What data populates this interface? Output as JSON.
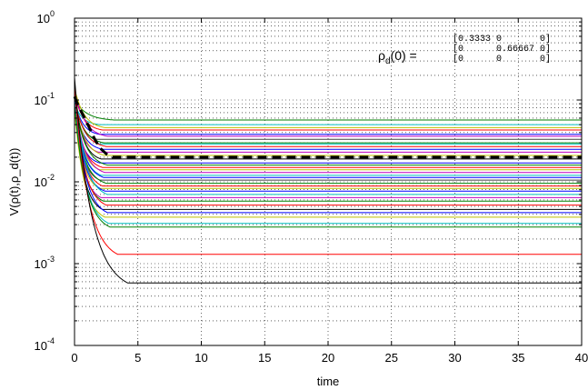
{
  "chart_data": {
    "type": "line",
    "title": "",
    "xlabel": "time",
    "ylabel": "V(ρ(t),ρ_d(t))",
    "xlim": [
      0,
      40
    ],
    "ylim": [
      0.0001,
      1
    ],
    "yscale": "log",
    "grid": true,
    "x_ticks": [
      "0",
      "5",
      "10",
      "15",
      "20",
      "25",
      "30",
      "35",
      "40"
    ],
    "y_ticks": [
      {
        "base": "10",
        "exp": "0"
      },
      {
        "base": "10",
        "exp": "-1"
      },
      {
        "base": "10",
        "exp": "-2"
      },
      {
        "base": "10",
        "exp": "-3"
      },
      {
        "base": "10",
        "exp": "-4"
      }
    ],
    "annotation": {
      "lhs_base": "ρ",
      "lhs_sub": "d",
      "lhs_rest": "(0) =",
      "matrix_rows": [
        "[0.3333 0       0]",
        "[0      0.66667 0]",
        "[0      0       0]"
      ]
    },
    "highlight_series": {
      "style": "dashed-black",
      "x": [
        0,
        0.3,
        0.8,
        1.2,
        1.6,
        2.0,
        2.5,
        3.0,
        40
      ],
      "y": [
        0.11,
        0.085,
        0.06,
        0.045,
        0.033,
        0.026,
        0.022,
        0.02,
        0.02
      ]
    },
    "series": [
      {
        "color": "#008000",
        "y_start": 0.1,
        "y_end": 0.057,
        "t_settle": 3.1
      },
      {
        "color": "#00bfbf",
        "y_start": 0.09,
        "y_end": 0.05,
        "t_settle": 2.0
      },
      {
        "color": "#bfbf00",
        "y_start": 0.14,
        "y_end": 0.046,
        "t_settle": 2.4
      },
      {
        "color": "#ff0000",
        "y_start": 0.12,
        "y_end": 0.043,
        "t_settle": 2.2
      },
      {
        "color": "#0000ff",
        "y_start": 0.1,
        "y_end": 0.038,
        "t_settle": 2.0
      },
      {
        "color": "#bf00bf",
        "y_start": 0.13,
        "y_end": 0.036,
        "t_settle": 2.6
      },
      {
        "color": "#404040",
        "y_start": 0.11,
        "y_end": 0.033,
        "t_settle": 1.8
      },
      {
        "color": "#008000",
        "y_start": 0.1,
        "y_end": 0.03,
        "t_settle": 2.3
      },
      {
        "color": "#00bfbf",
        "y_start": 0.12,
        "y_end": 0.029,
        "t_settle": 2.0
      },
      {
        "color": "#ff0000",
        "y_start": 0.1,
        "y_end": 0.027,
        "t_settle": 2.5
      },
      {
        "color": "#0000ff",
        "y_start": 0.09,
        "y_end": 0.025,
        "t_settle": 2.2
      },
      {
        "color": "#bf00bf",
        "y_start": 0.11,
        "y_end": 0.023,
        "t_settle": 1.9
      },
      {
        "color": "#bfbf00",
        "y_start": 0.1,
        "y_end": 0.021,
        "t_settle": 2.4
      },
      {
        "color": "#000000",
        "y_start": 0.12,
        "y_end": 0.019,
        "t_settle": 2.1
      },
      {
        "color": "#0000ff",
        "y_start": 0.08,
        "y_end": 0.017,
        "t_settle": 2.0
      },
      {
        "color": "#008000",
        "y_start": 0.1,
        "y_end": 0.016,
        "t_settle": 2.6
      },
      {
        "color": "#ff0000",
        "y_start": 0.09,
        "y_end": 0.015,
        "t_settle": 2.2
      },
      {
        "color": "#bfbf00",
        "y_start": 0.11,
        "y_end": 0.014,
        "t_settle": 2.0
      },
      {
        "color": "#bf00bf",
        "y_start": 0.1,
        "y_end": 0.013,
        "t_settle": 2.4
      },
      {
        "color": "#00bfbf",
        "y_start": 0.12,
        "y_end": 0.012,
        "t_settle": 2.1
      },
      {
        "color": "#0000ff",
        "y_start": 0.09,
        "y_end": 0.0113,
        "t_settle": 2.3
      },
      {
        "color": "#404040",
        "y_start": 0.1,
        "y_end": 0.0105,
        "t_settle": 2.0
      },
      {
        "color": "#008000",
        "y_start": 0.08,
        "y_end": 0.0096,
        "t_settle": 2.5
      },
      {
        "color": "#ff0000",
        "y_start": 0.11,
        "y_end": 0.0089,
        "t_settle": 2.2
      },
      {
        "color": "#bfbf00",
        "y_start": 0.1,
        "y_end": 0.0083,
        "t_settle": 2.0
      },
      {
        "color": "#0000ff",
        "y_start": 0.09,
        "y_end": 0.0077,
        "t_settle": 2.4
      },
      {
        "color": "#00bfbf",
        "y_start": 0.12,
        "y_end": 0.007,
        "t_settle": 2.6
      },
      {
        "color": "#bf00bf",
        "y_start": 0.1,
        "y_end": 0.0064,
        "t_settle": 2.1
      },
      {
        "color": "#008000",
        "y_start": 0.09,
        "y_end": 0.0058,
        "t_settle": 2.3
      },
      {
        "color": "#ff0000",
        "y_start": 0.11,
        "y_end": 0.0052,
        "t_settle": 2.5
      },
      {
        "color": "#000000",
        "y_start": 0.1,
        "y_end": 0.0046,
        "t_settle": 2.2
      },
      {
        "color": "#0000ff",
        "y_start": 0.12,
        "y_end": 0.0042,
        "t_settle": 2.6
      },
      {
        "color": "#bfbf00",
        "y_start": 0.08,
        "y_end": 0.0037,
        "t_settle": 2.4
      },
      {
        "color": "#00bfbf",
        "y_start": 0.1,
        "y_end": 0.0031,
        "t_settle": 2.7
      },
      {
        "color": "#008000",
        "y_start": 0.09,
        "y_end": 0.0028,
        "t_settle": 2.8
      },
      {
        "color": "#ff0000",
        "y_start": 0.15,
        "y_end": 0.0013,
        "t_settle": 3.4
      },
      {
        "color": "#000000",
        "y_start": 0.19,
        "y_end": 0.00058,
        "t_settle": 4.2
      }
    ]
  }
}
